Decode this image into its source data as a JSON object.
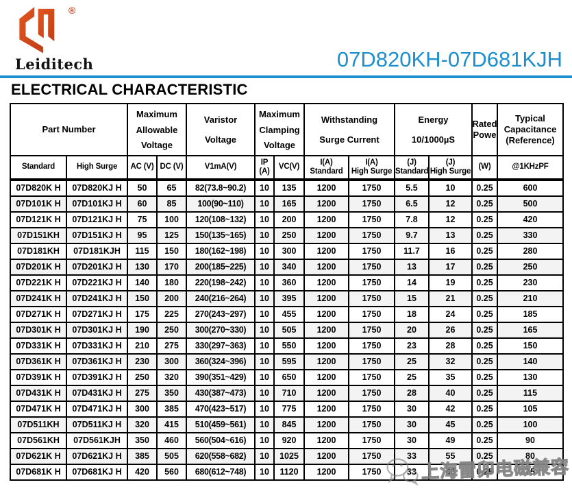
{
  "header": {
    "brand": "Leiditech",
    "registered_mark": "®",
    "doc_title": "07D820KH-07D681KJH",
    "section_heading": "ELECTRICAL CHARACTERISTIC",
    "accent_blue": "#1E8FCE",
    "logo_orange": "#D5471D"
  },
  "table": {
    "group_headers": [
      {
        "lines": [
          "Part Number"
        ]
      },
      {
        "lines": [
          "Maximum",
          "Allowable",
          "Voltage"
        ]
      },
      {
        "lines": [
          "Varistor",
          "Voltage"
        ]
      },
      {
        "lines": [
          "Maximum",
          "Clamping",
          "Voltage"
        ]
      },
      {
        "lines": [
          "Withstanding",
          "Surge Current"
        ]
      },
      {
        "lines": [
          "Energy",
          "10/1000µS"
        ]
      },
      {
        "lines": [
          "Rated",
          "Powe"
        ]
      },
      {
        "lines": [
          "Typical",
          "Capacitance",
          "(Reference)"
        ]
      }
    ],
    "sub_headers": [
      {
        "lines": [
          "Standard"
        ]
      },
      {
        "lines": [
          "High Surge"
        ]
      },
      {
        "lines": [
          "AC (V)"
        ]
      },
      {
        "lines": [
          "DC (V)"
        ]
      },
      {
        "lines": [
          "V1mA(V)"
        ]
      },
      {
        "lines": [
          "IP",
          "(A)"
        ]
      },
      {
        "lines": [
          "VC(V)"
        ]
      },
      {
        "lines": [
          "I(A)",
          "Standard"
        ]
      },
      {
        "lines": [
          "I(A)",
          "High Surge"
        ]
      },
      {
        "lines": [
          "(J)",
          "Standard"
        ]
      },
      {
        "lines": [
          "(J)",
          "High Surge"
        ]
      },
      {
        "lines": [
          "(W)"
        ]
      },
      {
        "lines": [
          "@1KHzPF"
        ]
      }
    ],
    "rows": [
      [
        "07D820K H",
        "07D820KJ H",
        "50",
        "65",
        "82(73.8~90.2)",
        "10",
        "135",
        "1200",
        "1750",
        "5.5",
        "10",
        "0.25",
        "600"
      ],
      [
        "07D101K H",
        "07D101KJ H",
        "60",
        "85",
        "100(90~110)",
        "10",
        "165",
        "1200",
        "1750",
        "6.5",
        "12",
        "0.25",
        "500"
      ],
      [
        "07D121K H",
        "07D121KJ H",
        "75",
        "100",
        "120(108~132)",
        "10",
        "200",
        "1200",
        "1750",
        "7.8",
        "12",
        "0.25",
        "420"
      ],
      [
        "07D151KH",
        "07D151KJ H",
        "95",
        "125",
        "150(135~165)",
        "10",
        "250",
        "1200",
        "1750",
        "9.7",
        "13",
        "0.25",
        "330"
      ],
      [
        "07D181KH",
        "07D181KJH",
        "115",
        "150",
        "180(162~198)",
        "10",
        "300",
        "1200",
        "1750",
        "11.7",
        "16",
        "0.25",
        "280"
      ],
      [
        "07D201K H",
        "07D201KJ H",
        "130",
        "170",
        "200(185~225)",
        "10",
        "340",
        "1200",
        "1750",
        "13",
        "17",
        "0.25",
        "250"
      ],
      [
        "07D221K H",
        "07D221KJ H",
        "140",
        "180",
        "220(198~242)",
        "10",
        "360",
        "1200",
        "1750",
        "14",
        "19",
        "0.25",
        "230"
      ],
      [
        "07D241K H",
        "07D241KJ H",
        "150",
        "200",
        "240(216~264)",
        "10",
        "395",
        "1200",
        "1750",
        "15",
        "21",
        "0.25",
        "210"
      ],
      [
        "07D271K H",
        "07D271KJ H",
        "175",
        "225",
        "270(243~297)",
        "10",
        "455",
        "1200",
        "1750",
        "18",
        "24",
        "0.25",
        "185"
      ],
      [
        "07D301K H",
        "07D301KJ H",
        "190",
        "250",
        "300(270~330)",
        "10",
        "505",
        "1200",
        "1750",
        "20",
        "26",
        "0.25",
        "165"
      ],
      [
        "07D331K H",
        "07D331KJ H",
        "210",
        "275",
        "330(297~363)",
        "10",
        "550",
        "1200",
        "1750",
        "23",
        "28",
        "0.25",
        "150"
      ],
      [
        "07D361K H",
        "07D361KJ H",
        "230",
        "300",
        "360(324~396)",
        "10",
        "595",
        "1200",
        "1750",
        "25",
        "32",
        "0.25",
        "140"
      ],
      [
        "07D391K H",
        "07D391KJ H",
        "250",
        "320",
        "390(351~429)",
        "10",
        "650",
        "1200",
        "1750",
        "25",
        "35",
        "0.25",
        "130"
      ],
      [
        "07D431K H",
        "07D431KJ H",
        "275",
        "350",
        "430(387~473)",
        "10",
        "710",
        "1200",
        "1750",
        "28",
        "40",
        "0.25",
        "115"
      ],
      [
        "07D471K H",
        "07D471KJ H",
        "300",
        "385",
        "470(423~517)",
        "10",
        "775",
        "1200",
        "1750",
        "30",
        "42",
        "0.25",
        "105"
      ],
      [
        "07D511KH",
        "07D511KJ H",
        "320",
        "415",
        "510(459~561)",
        "10",
        "845",
        "1200",
        "1750",
        "30",
        "45",
        "0.25",
        "100"
      ],
      [
        "07D561KH",
        "07D561KJH",
        "350",
        "460",
        "560(504~616)",
        "10",
        "920",
        "1200",
        "1750",
        "30",
        "49",
        "0.25",
        "90"
      ],
      [
        "07D621K H",
        "07D621KJ H",
        "385",
        "505",
        "620(558~682)",
        "10",
        "1025",
        "1200",
        "1750",
        "33",
        "55",
        "0.25",
        "80"
      ],
      [
        "07D681K H",
        "07D681KJ H",
        "420",
        "560",
        "680(612~748)",
        "10",
        "1120",
        "1200",
        "1750",
        "33",
        "60",
        "0.25",
        "75"
      ]
    ]
  },
  "watermark": {
    "icon": "wechat-icon",
    "text": "上海雷卯电磁兼容"
  }
}
